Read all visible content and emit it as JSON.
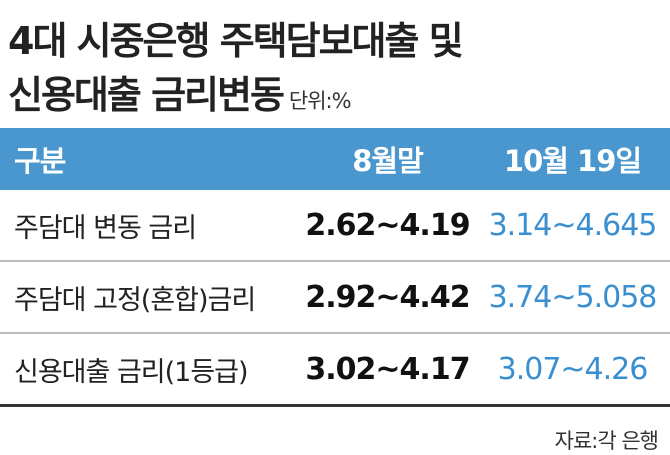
{
  "header": {
    "title": [
      "4대 시중은행 주택담보대출 및",
      "신용대출 금리변동"
    ],
    "unit": "단위:%"
  },
  "table": {
    "columns": [
      "구분",
      "8월말",
      "10월 19일"
    ],
    "rows": [
      [
        "주담대 변동 금리",
        "2.62~4.19",
        "3.14~4.645"
      ],
      [
        "주담대 고정(혼합)금리",
        "2.92~4.42",
        "3.74~5.058"
      ],
      [
        "신용대출 금리(1등급)",
        "3.02~4.17",
        "3.07~4.26"
      ]
    ]
  },
  "source": "자료:각 은행"
}
